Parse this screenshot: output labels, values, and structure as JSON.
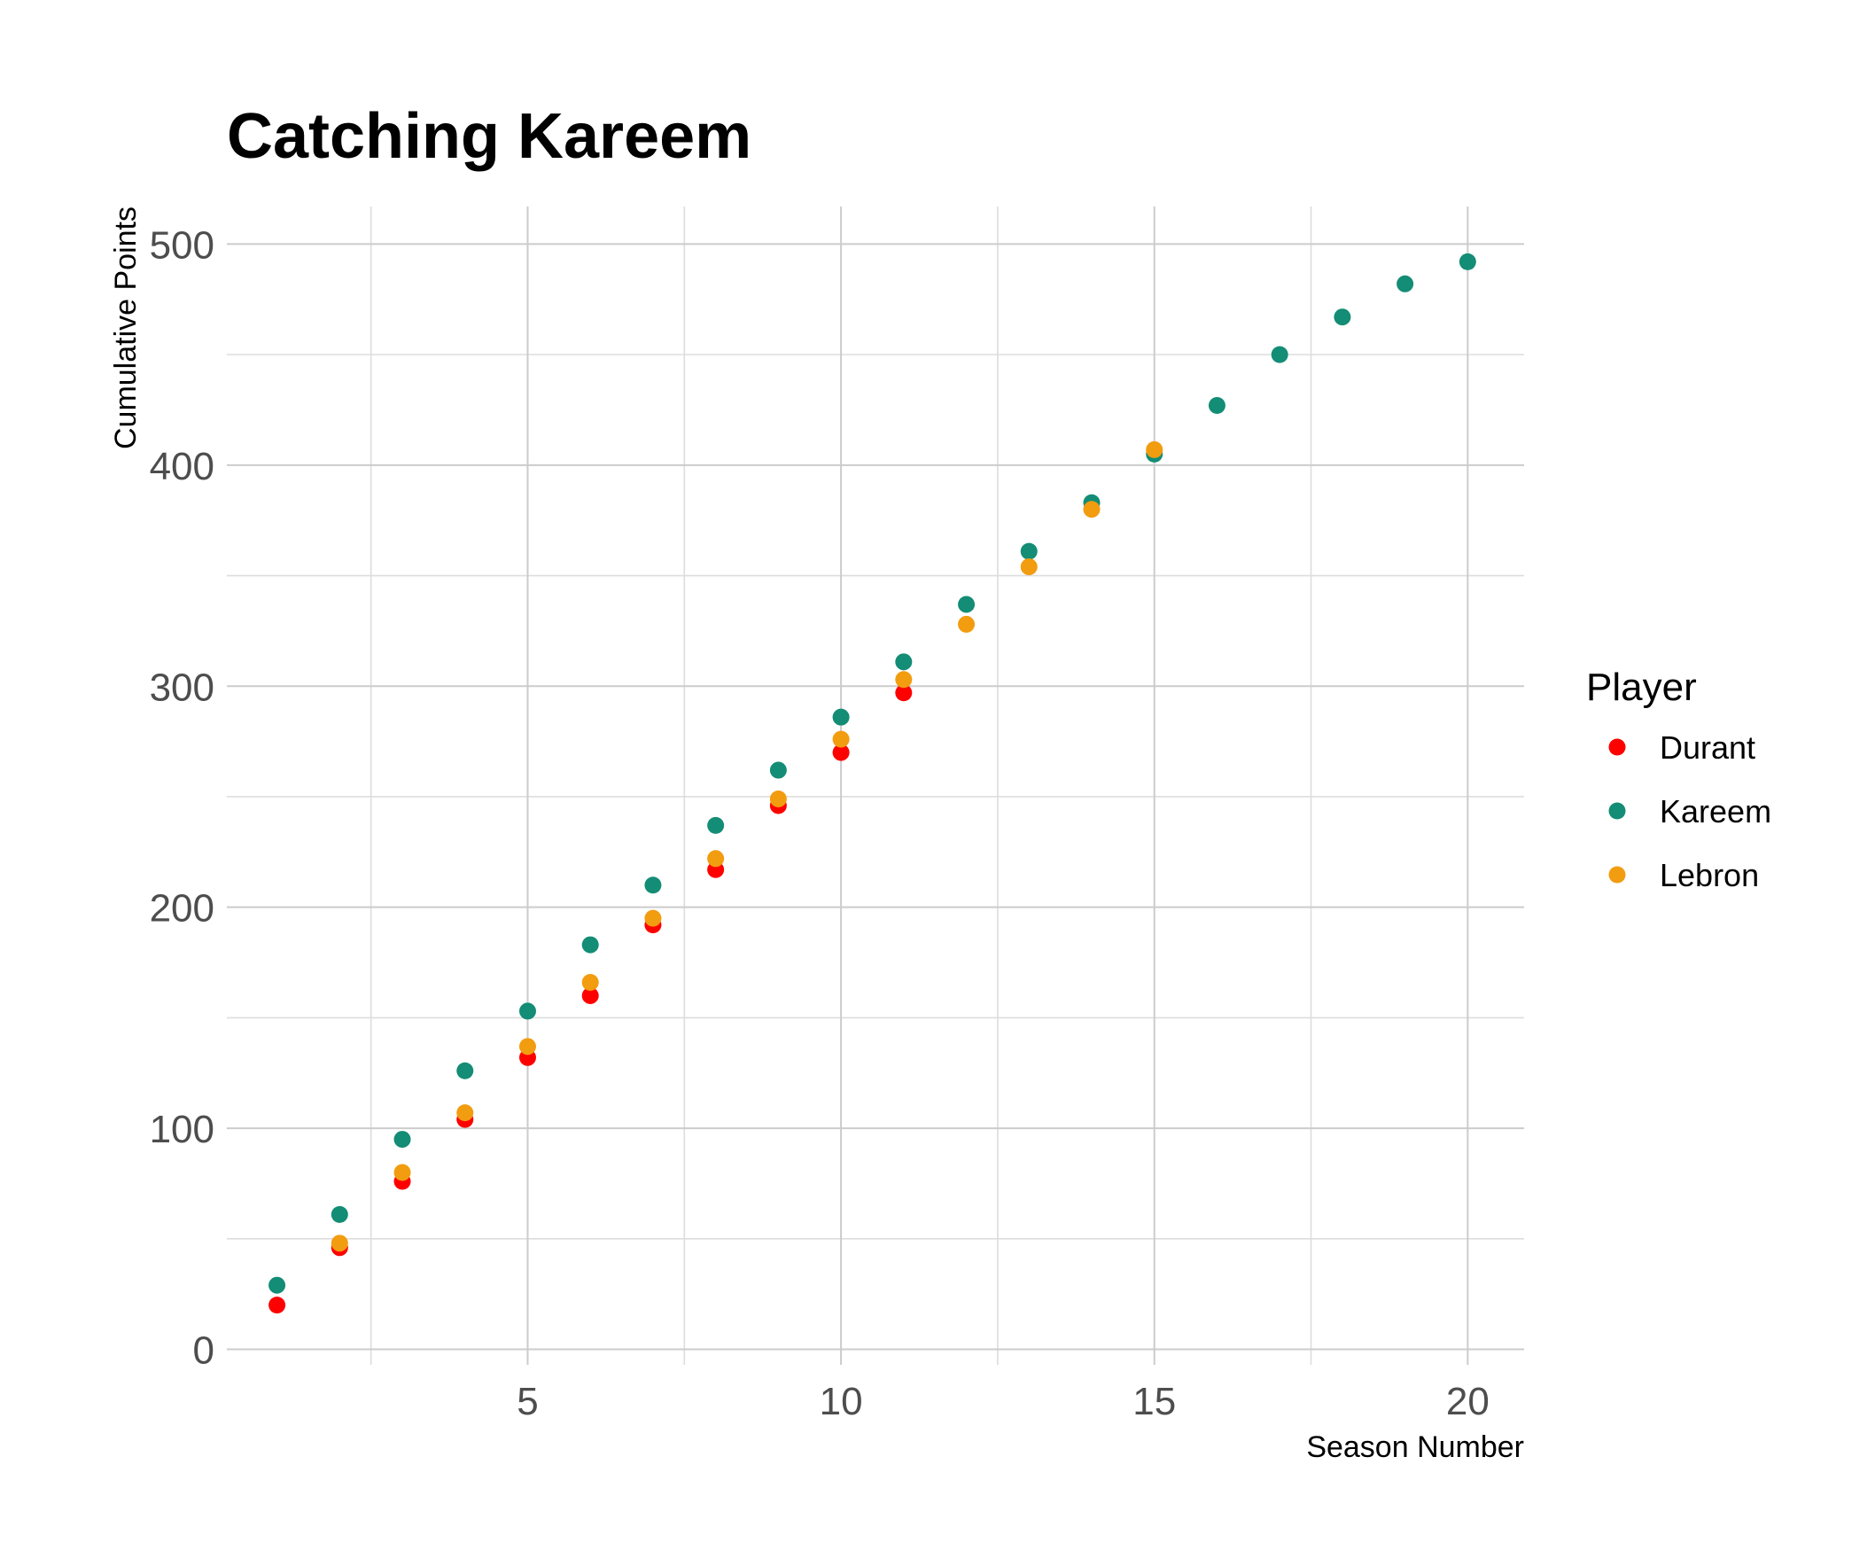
{
  "chart_data": {
    "type": "scatter",
    "title": "Catching Kareem",
    "xlabel": "Season Number",
    "ylabel": "Cumulative Points",
    "xlim": [
      0.2,
      20.9
    ],
    "ylim": [
      -7,
      517
    ],
    "x_ticks": [
      5,
      10,
      15,
      20
    ],
    "y_ticks": [
      0,
      100,
      200,
      300,
      400,
      500
    ],
    "grid": true,
    "legend": {
      "title": "Player",
      "position": "right"
    },
    "series": [
      {
        "name": "Durant",
        "color": "#ff0000",
        "points": [
          [
            1,
            20
          ],
          [
            2,
            46
          ],
          [
            3,
            76
          ],
          [
            4,
            104
          ],
          [
            5,
            132
          ],
          [
            6,
            160
          ],
          [
            7,
            192
          ],
          [
            8,
            217
          ],
          [
            9,
            246
          ],
          [
            10,
            270
          ],
          [
            11,
            297
          ]
        ]
      },
      {
        "name": "Kareem",
        "color": "#138d75",
        "points": [
          [
            1,
            29
          ],
          [
            2,
            61
          ],
          [
            3,
            95
          ],
          [
            4,
            126
          ],
          [
            5,
            153
          ],
          [
            6,
            183
          ],
          [
            7,
            210
          ],
          [
            8,
            237
          ],
          [
            9,
            262
          ],
          [
            10,
            286
          ],
          [
            11,
            311
          ],
          [
            12,
            337
          ],
          [
            13,
            361
          ],
          [
            14,
            383
          ],
          [
            15,
            405
          ],
          [
            16,
            427
          ],
          [
            17,
            450
          ],
          [
            18,
            467
          ],
          [
            19,
            482
          ],
          [
            20,
            492
          ]
        ]
      },
      {
        "name": "Lebron",
        "color": "#f29c0f",
        "points": [
          [
            2,
            48
          ],
          [
            3,
            80
          ],
          [
            4,
            107
          ],
          [
            5,
            137
          ],
          [
            6,
            166
          ],
          [
            7,
            195
          ],
          [
            8,
            222
          ],
          [
            9,
            249
          ],
          [
            10,
            276
          ],
          [
            11,
            303
          ],
          [
            12,
            328
          ],
          [
            13,
            354
          ],
          [
            14,
            380
          ],
          [
            15,
            407
          ]
        ]
      }
    ]
  }
}
